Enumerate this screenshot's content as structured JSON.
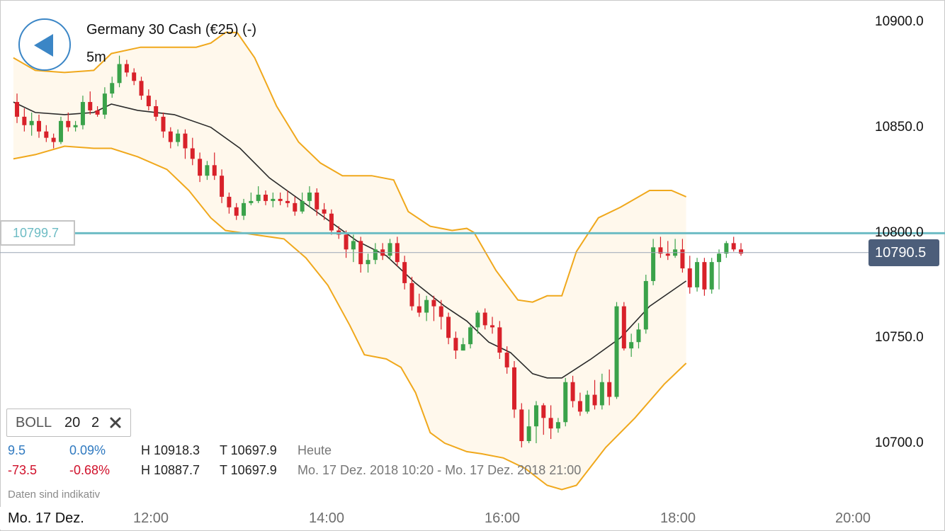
{
  "header": {
    "instrument_title": "Germany 30 Cash (€25) (-)",
    "timeframe": "5m"
  },
  "indicator": {
    "name": "BOLL",
    "period": "20",
    "deviation": "2"
  },
  "stats": {
    "today": {
      "change": "9.5",
      "change_pct": "0.09%",
      "high": "H 10918.3",
      "low": "T 10697.9",
      "label": "Heute"
    },
    "range": {
      "change": "-73.5",
      "change_pct": "-0.68%",
      "high": "H 10887.7",
      "low": "T 10697.9",
      "label": "Mo. 17 Dez. 2018 10:20 - Mo. 17 Dez. 2018 21:00"
    }
  },
  "disclaimer": "Daten sind indikativ",
  "date_label": "Mo. 17 Dez.",
  "reference_line": {
    "value": 10799.7,
    "label": "10799.7"
  },
  "current_price": {
    "value": 10790.5,
    "label": "10790.5"
  },
  "colors": {
    "up": "#3aa24a",
    "down": "#d8212a",
    "band": "#f0a81c",
    "band_fill": "#fff8ec",
    "middle": "#2a2a2a",
    "reference": "#6dbcc4",
    "price_tag": "#4c5e7a",
    "accent": "#3b86c6"
  },
  "icons": {
    "back": "back-arrow-icon",
    "close": "close-icon"
  },
  "chart_data": {
    "type": "candlestick",
    "x_ticks": [
      {
        "label": "12:00",
        "minute": 720
      },
      {
        "label": "14:00",
        "minute": 840
      },
      {
        "label": "16:00",
        "minute": 960
      },
      {
        "label": "18:00",
        "minute": 1080
      },
      {
        "label": "20:00",
        "minute": 1200
      }
    ],
    "y_ticks": [
      {
        "label": "10900.0",
        "value": 10900
      },
      {
        "label": "10850.0",
        "value": 10850
      },
      {
        "label": "10800.0",
        "value": 10800
      },
      {
        "label": "10750.0",
        "value": 10750
      },
      {
        "label": "10700.0",
        "value": 10700
      }
    ],
    "ylim": [
      10680,
      10910
    ],
    "xlim": [
      625,
      1260
    ],
    "candle_minutes": 5,
    "start_minute": 625,
    "grid": false,
    "candles": [
      [
        10862,
        10855,
        10866,
        10852
      ],
      [
        10855,
        10851,
        10859,
        10848
      ],
      [
        10851,
        10853,
        10857,
        10846
      ],
      [
        10853,
        10848,
        10856,
        10845
      ],
      [
        10848,
        10845,
        10851,
        10843
      ],
      [
        10845,
        10843,
        10847,
        10840
      ],
      [
        10843,
        10853,
        10855,
        10842
      ],
      [
        10853,
        10850,
        10857,
        10848
      ],
      [
        10850,
        10851,
        10853,
        10848
      ],
      [
        10851,
        10862,
        10865,
        10849
      ],
      [
        10862,
        10858,
        10867,
        10856
      ],
      [
        10858,
        10856,
        10860,
        10855
      ],
      [
        10856,
        10866,
        10869,
        10854
      ],
      [
        10866,
        10871,
        10874,
        10864
      ],
      [
        10871,
        10880,
        10884,
        10869
      ],
      [
        10880,
        10876,
        10882,
        10874
      ],
      [
        10876,
        10872,
        10878,
        10870
      ],
      [
        10872,
        10865,
        10874,
        10863
      ],
      [
        10865,
        10860,
        10868,
        10858
      ],
      [
        10860,
        10855,
        10863,
        10853
      ],
      [
        10855,
        10848,
        10857,
        10845
      ],
      [
        10848,
        10843,
        10850,
        10840
      ],
      [
        10843,
        10847,
        10849,
        10841
      ],
      [
        10847,
        10840,
        10849,
        10835
      ],
      [
        10840,
        10835,
        10845,
        10832
      ],
      [
        10835,
        10827,
        10838,
        10824
      ],
      [
        10827,
        10832,
        10834,
        10825
      ],
      [
        10832,
        10827,
        10838,
        10825
      ],
      [
        10827,
        10817,
        10830,
        10814
      ],
      [
        10817,
        10812,
        10819,
        10809
      ],
      [
        10812,
        10808,
        10814,
        10806
      ],
      [
        10808,
        10814,
        10816,
        10806
      ],
      [
        10814,
        10815,
        10819,
        10813
      ],
      [
        10815,
        10818,
        10822,
        10814
      ],
      [
        10818,
        10815,
        10820,
        10813
      ],
      [
        10815,
        10816,
        10819,
        10812
      ],
      [
        10816,
        10815,
        10819,
        10813
      ],
      [
        10815,
        10814,
        10820,
        10812
      ],
      [
        10814,
        10810,
        10817,
        10808
      ],
      [
        10810,
        10815,
        10819,
        10809
      ],
      [
        10815,
        10819,
        10822,
        10812
      ],
      [
        10819,
        10811,
        10821,
        10808
      ],
      [
        10811,
        10809,
        10814,
        10806
      ],
      [
        10809,
        10801,
        10811,
        10799
      ],
      [
        10801,
        10799,
        10803,
        10797
      ],
      [
        10799,
        10792,
        10801,
        10788
      ],
      [
        10792,
        10796,
        10799,
        10786
      ],
      [
        10796,
        10785,
        10798,
        10781
      ],
      [
        10785,
        10787,
        10790,
        10781
      ],
      [
        10787,
        10792,
        10795,
        10785
      ],
      [
        10792,
        10789,
        10795,
        10787
      ],
      [
        10789,
        10795,
        10797,
        10787
      ],
      [
        10795,
        10786,
        10798,
        10784
      ],
      [
        10786,
        10776,
        10789,
        10773
      ],
      [
        10776,
        10765,
        10779,
        10763
      ],
      [
        10765,
        10762,
        10771,
        10760
      ],
      [
        10762,
        10768,
        10770,
        10758
      ],
      [
        10768,
        10765,
        10770,
        10758
      ],
      [
        10765,
        10760,
        10768,
        10754
      ],
      [
        10760,
        10750,
        10762,
        10747
      ],
      [
        10750,
        10744,
        10753,
        10740
      ],
      [
        10744,
        10747,
        10750,
        10744
      ],
      [
        10747,
        10755,
        10756,
        10745
      ],
      [
        10755,
        10762,
        10763,
        10752
      ],
      [
        10762,
        10756,
        10764,
        10754
      ],
      [
        10756,
        10755,
        10760,
        10752
      ],
      [
        10755,
        10743,
        10758,
        10740
      ],
      [
        10743,
        10736,
        10746,
        10733
      ],
      [
        10736,
        10716,
        10739,
        10712
      ],
      [
        10716,
        10701,
        10719,
        10698
      ],
      [
        10701,
        10708,
        10716,
        10700
      ],
      [
        10708,
        10718,
        10720,
        10700
      ],
      [
        10718,
        10712,
        10719,
        10704
      ],
      [
        10712,
        10707,
        10718,
        10702
      ],
      [
        10707,
        10710,
        10712,
        10705
      ],
      [
        10710,
        10729,
        10731,
        10708
      ],
      [
        10729,
        10720,
        10732,
        10717
      ],
      [
        10720,
        10715,
        10724,
        10713
      ],
      [
        10715,
        10723,
        10725,
        10714
      ],
      [
        10723,
        10718,
        10730,
        10716
      ],
      [
        10718,
        10729,
        10733,
        10716
      ],
      [
        10729,
        10722,
        10735,
        10718
      ],
      [
        10722,
        10765,
        10767,
        10721
      ],
      [
        10765,
        10745,
        10767,
        10744
      ],
      [
        10745,
        10748,
        10752,
        10741
      ],
      [
        10748,
        10754,
        10757,
        10745
      ],
      [
        10754,
        10777,
        10780,
        10752
      ],
      [
        10777,
        10793,
        10797,
        10775
      ],
      [
        10793,
        10790,
        10798,
        10788
      ],
      [
        10790,
        10789,
        10796,
        10787
      ],
      [
        10789,
        10792,
        10797,
        10788
      ],
      [
        10792,
        10783,
        10797,
        10781
      ],
      [
        10783,
        10774,
        10789,
        10771
      ],
      [
        10774,
        10786,
        10788,
        10772
      ],
      [
        10786,
        10773,
        10788,
        10770
      ],
      [
        10773,
        10786,
        10788,
        10771
      ],
      [
        10786,
        10790,
        10792,
        10773
      ],
      [
        10790,
        10795,
        10796,
        10788
      ],
      [
        10795,
        10792,
        10798,
        10791
      ],
      [
        10792,
        10790,
        10795,
        10789
      ]
    ],
    "bollinger": {
      "upper": [
        [
          625,
          10883
        ],
        [
          640,
          10877
        ],
        [
          660,
          10876
        ],
        [
          680,
          10877
        ],
        [
          692,
          10885
        ],
        [
          712,
          10888
        ],
        [
          735,
          10888
        ],
        [
          750,
          10888
        ],
        [
          760,
          10890
        ],
        [
          770,
          10895
        ],
        [
          778,
          10895
        ],
        [
          790,
          10883
        ],
        [
          805,
          10860
        ],
        [
          820,
          10843
        ],
        [
          835,
          10833
        ],
        [
          850,
          10827
        ],
        [
          870,
          10827
        ],
        [
          885,
          10825
        ],
        [
          895,
          10810
        ],
        [
          910,
          10803
        ],
        [
          925,
          10801
        ],
        [
          935,
          10802
        ],
        [
          940,
          10800
        ],
        [
          955,
          10782
        ],
        [
          970,
          10768
        ],
        [
          980,
          10767
        ],
        [
          990,
          10770
        ],
        [
          1000,
          10770
        ],
        [
          1010,
          10791
        ],
        [
          1025,
          10807
        ],
        [
          1040,
          10812
        ],
        [
          1060,
          10820
        ],
        [
          1075,
          10820
        ],
        [
          1085,
          10817
        ]
      ],
      "middle": [
        [
          625,
          10862
        ],
        [
          640,
          10857
        ],
        [
          660,
          10856
        ],
        [
          680,
          10857
        ],
        [
          692,
          10861
        ],
        [
          710,
          10858
        ],
        [
          735,
          10856
        ],
        [
          760,
          10850
        ],
        [
          780,
          10840
        ],
        [
          800,
          10826
        ],
        [
          820,
          10816
        ],
        [
          840,
          10806
        ],
        [
          860,
          10796
        ],
        [
          880,
          10789
        ],
        [
          900,
          10776
        ],
        [
          920,
          10765
        ],
        [
          935,
          10758
        ],
        [
          950,
          10748
        ],
        [
          965,
          10743
        ],
        [
          980,
          10733
        ],
        [
          990,
          10731
        ],
        [
          1000,
          10731
        ],
        [
          1020,
          10740
        ],
        [
          1040,
          10750
        ],
        [
          1060,
          10765
        ],
        [
          1085,
          10777
        ]
      ],
      "lower": [
        [
          625,
          10835
        ],
        [
          640,
          10837
        ],
        [
          660,
          10841
        ],
        [
          680,
          10840
        ],
        [
          692,
          10840
        ],
        [
          710,
          10836
        ],
        [
          730,
          10830
        ],
        [
          745,
          10820
        ],
        [
          760,
          10807
        ],
        [
          770,
          10801
        ],
        [
          790,
          10799
        ],
        [
          810,
          10797
        ],
        [
          825,
          10788
        ],
        [
          840,
          10775
        ],
        [
          855,
          10756
        ],
        [
          865,
          10742
        ],
        [
          880,
          10740
        ],
        [
          890,
          10736
        ],
        [
          900,
          10724
        ],
        [
          910,
          10705
        ],
        [
          920,
          10700
        ],
        [
          935,
          10696
        ],
        [
          945,
          10695
        ],
        [
          960,
          10693
        ],
        [
          975,
          10688
        ],
        [
          990,
          10680
        ],
        [
          1000,
          10678
        ],
        [
          1010,
          10680
        ],
        [
          1030,
          10698
        ],
        [
          1050,
          10712
        ],
        [
          1070,
          10728
        ],
        [
          1085,
          10738
        ]
      ]
    }
  }
}
